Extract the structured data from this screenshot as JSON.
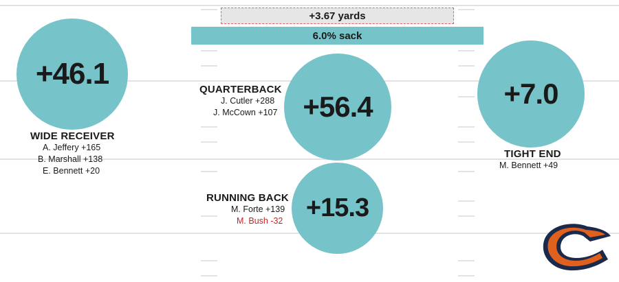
{
  "colors": {
    "circle": "#76c3c9",
    "negative_text": "#cc2222",
    "logo_orange": "#e0611e",
    "logo_navy": "#1b2a4a",
    "field_lines": "#e3e3e3"
  },
  "top_bars": {
    "yards_label": "+3.67 yards",
    "sack_label": "6.0% sack"
  },
  "positions": {
    "wide_receiver": {
      "value": "+46.1",
      "title": "WIDE RECEIVER",
      "players": [
        "A. Jeffery +165",
        "B. Marshall +138",
        "E. Bennett +20"
      ]
    },
    "quarterback": {
      "value": "+56.4",
      "title": "QUARTERBACK",
      "players": [
        "J. Cutler +288",
        "J. McCown +107"
      ]
    },
    "tight_end": {
      "value": "+7.0",
      "title": "TIGHT END",
      "players": [
        "M. Bennett +49"
      ]
    },
    "running_back": {
      "value": "+15.3",
      "title": "RUNNING BACK",
      "players": [
        "M. Forte +139",
        "M. Bush -32"
      ]
    }
  },
  "logo": {
    "icon": "bears-c-logo-icon"
  }
}
